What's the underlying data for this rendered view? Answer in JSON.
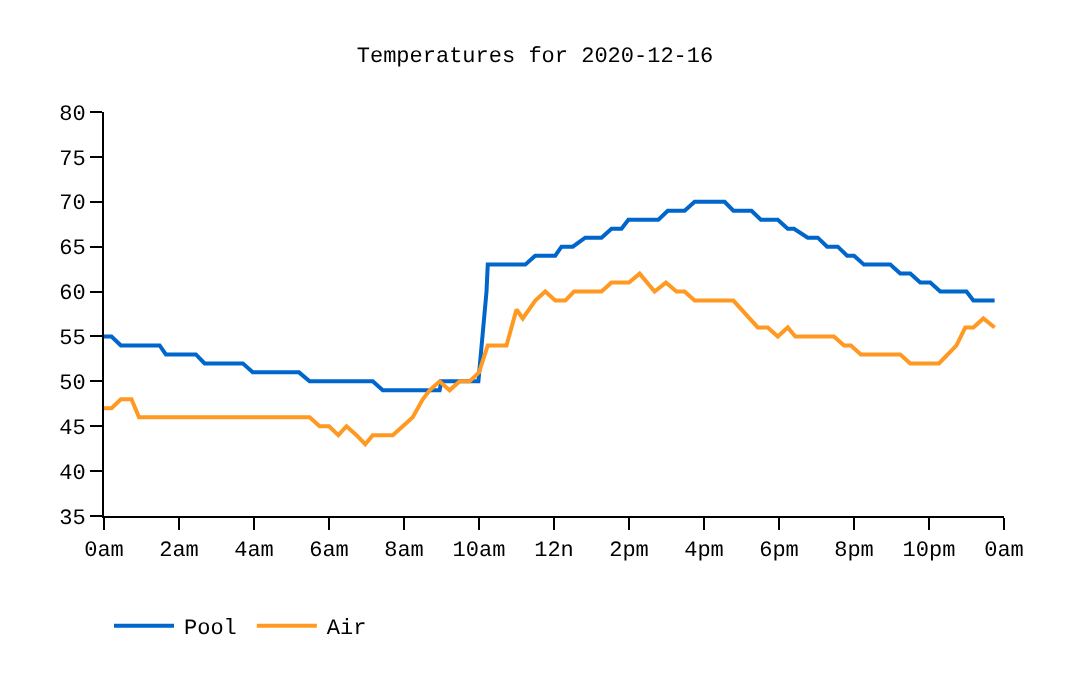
{
  "chart_data": {
    "type": "line",
    "title": "Temperatures for 2020-12-16",
    "xlim": [
      "2020-12-16T00:00",
      "2020-12-17T00:00"
    ],
    "xticks": [
      {
        "value": "2020-12-16T00:00",
        "label": "0am"
      },
      {
        "value": "2020-12-16T02:00",
        "label": "2am"
      },
      {
        "value": "2020-12-16T04:00",
        "label": "4am"
      },
      {
        "value": "2020-12-16T06:00",
        "label": "6am"
      },
      {
        "value": "2020-12-16T08:00",
        "label": "8am"
      },
      {
        "value": "2020-12-16T10:00",
        "label": "10am"
      },
      {
        "value": "2020-12-16T12:00",
        "label": "12n"
      },
      {
        "value": "2020-12-16T14:00",
        "label": "2pm"
      },
      {
        "value": "2020-12-16T16:00",
        "label": "4pm"
      },
      {
        "value": "2020-12-16T18:00",
        "label": "6pm"
      },
      {
        "value": "2020-12-16T20:00",
        "label": "8pm"
      },
      {
        "value": "2020-12-16T22:00",
        "label": "10pm"
      },
      {
        "value": "2020-12-17T00:00",
        "label": "0am"
      }
    ],
    "ylim": [
      35,
      80
    ],
    "yticks": [
      35,
      40,
      45,
      50,
      55,
      60,
      65,
      70,
      75,
      80
    ],
    "grid": false,
    "legend": "bottom left",
    "marker": "none",
    "line_style": "solid",
    "series": [
      {
        "name": "Pool",
        "color": "#0066cc",
        "x": [
          "2020-12-16T00:00",
          "2020-12-16T00:12",
          "2020-12-16T00:27",
          "2020-12-16T01:29",
          "2020-12-16T01:39",
          "2020-12-16T02:27",
          "2020-12-16T02:41",
          "2020-12-16T03:42",
          "2020-12-16T03:58",
          "2020-12-16T05:12",
          "2020-12-16T05:29",
          "2020-12-16T07:10",
          "2020-12-16T07:26",
          "2020-12-16T08:57",
          "2020-12-16T09:00",
          "2020-12-16T09:59",
          "2020-12-16T10:12",
          "2020-12-16T10:14",
          "2020-12-16T11:14",
          "2020-12-16T11:30",
          "2020-12-16T12:02",
          "2020-12-16T12:12",
          "2020-12-16T12:30",
          "2020-12-16T12:50",
          "2020-12-16T13:16",
          "2020-12-16T13:32",
          "2020-12-16T13:48",
          "2020-12-16T13:59",
          "2020-12-16T14:47",
          "2020-12-16T15:02",
          "2020-12-16T15:29",
          "2020-12-16T15:45",
          "2020-12-16T16:33",
          "2020-12-16T16:47",
          "2020-12-16T17:16",
          "2020-12-16T17:31",
          "2020-12-16T17:58",
          "2020-12-16T18:14",
          "2020-12-16T18:24",
          "2020-12-16T18:46",
          "2020-12-16T19:02",
          "2020-12-16T19:17",
          "2020-12-16T19:34",
          "2020-12-16T19:49",
          "2020-12-16T20:00",
          "2020-12-16T20:16",
          "2020-12-16T20:58",
          "2020-12-16T21:14",
          "2020-12-16T21:30",
          "2020-12-16T21:46",
          "2020-12-16T22:02",
          "2020-12-16T22:18",
          "2020-12-16T23:00",
          "2020-12-16T23:11",
          "2020-12-16T23:45"
        ],
        "values": [
          55,
          55,
          54,
          54,
          53,
          53,
          52,
          52,
          51,
          51,
          50,
          50,
          49,
          49,
          50,
          50,
          60,
          63,
          63,
          64,
          64,
          65,
          65,
          66,
          66,
          67,
          67,
          68,
          68,
          69,
          69,
          70,
          70,
          69,
          69,
          68,
          68,
          67,
          67,
          66,
          66,
          65,
          65,
          64,
          64,
          63,
          63,
          62,
          62,
          61,
          61,
          60,
          60,
          59,
          59
        ]
      },
      {
        "name": "Air",
        "color": "#ff9922",
        "x": [
          "2020-12-16T00:00",
          "2020-12-16T00:12",
          "2020-12-16T00:27",
          "2020-12-16T00:44",
          "2020-12-16T00:56",
          "2020-12-16T05:29",
          "2020-12-16T05:45",
          "2020-12-16T06:00",
          "2020-12-16T06:15",
          "2020-12-16T06:28",
          "2020-12-16T06:44",
          "2020-12-16T06:58",
          "2020-12-16T07:10",
          "2020-12-16T07:42",
          "2020-12-16T07:58",
          "2020-12-16T08:14",
          "2020-12-16T08:30",
          "2020-12-16T08:41",
          "2020-12-16T08:57",
          "2020-12-16T09:13",
          "2020-12-16T09:29",
          "2020-12-16T09:45",
          "2020-12-16T10:00",
          "2020-12-16T10:14",
          "2020-12-16T10:44",
          "2020-12-16T11:00",
          "2020-12-16T11:10",
          "2020-12-16T11:30",
          "2020-12-16T11:46",
          "2020-12-16T12:02",
          "2020-12-16T12:18",
          "2020-12-16T12:32",
          "2020-12-16T13:16",
          "2020-12-16T13:32",
          "2020-12-16T14:00",
          "2020-12-16T14:17",
          "2020-12-16T14:41",
          "2020-12-16T14:59",
          "2020-12-16T15:16",
          "2020-12-16T15:29",
          "2020-12-16T15:45",
          "2020-12-16T16:47",
          "2020-12-16T17:26",
          "2020-12-16T17:42",
          "2020-12-16T17:58",
          "2020-12-16T18:14",
          "2020-12-16T18:26",
          "2020-12-16T19:28",
          "2020-12-16T19:44",
          "2020-12-16T19:55",
          "2020-12-16T20:11",
          "2020-12-16T21:14",
          "2020-12-16T21:30",
          "2020-12-16T22:16",
          "2020-12-16T22:44",
          "2020-12-16T22:58",
          "2020-12-16T23:11",
          "2020-12-16T23:27",
          "2020-12-16T23:45"
        ],
        "values": [
          47,
          47,
          48,
          48,
          46,
          46,
          45,
          45,
          44,
          45,
          44,
          43,
          44,
          44,
          45,
          46,
          48,
          49,
          50,
          49,
          50,
          50,
          51,
          54,
          54,
          58,
          57,
          59,
          60,
          59,
          59,
          60,
          60,
          61,
          61,
          62,
          60,
          61,
          60,
          60,
          59,
          59,
          56,
          56,
          55,
          56,
          55,
          55,
          54,
          54,
          53,
          53,
          52,
          52,
          54,
          56,
          56,
          57,
          56
        ]
      }
    ]
  }
}
